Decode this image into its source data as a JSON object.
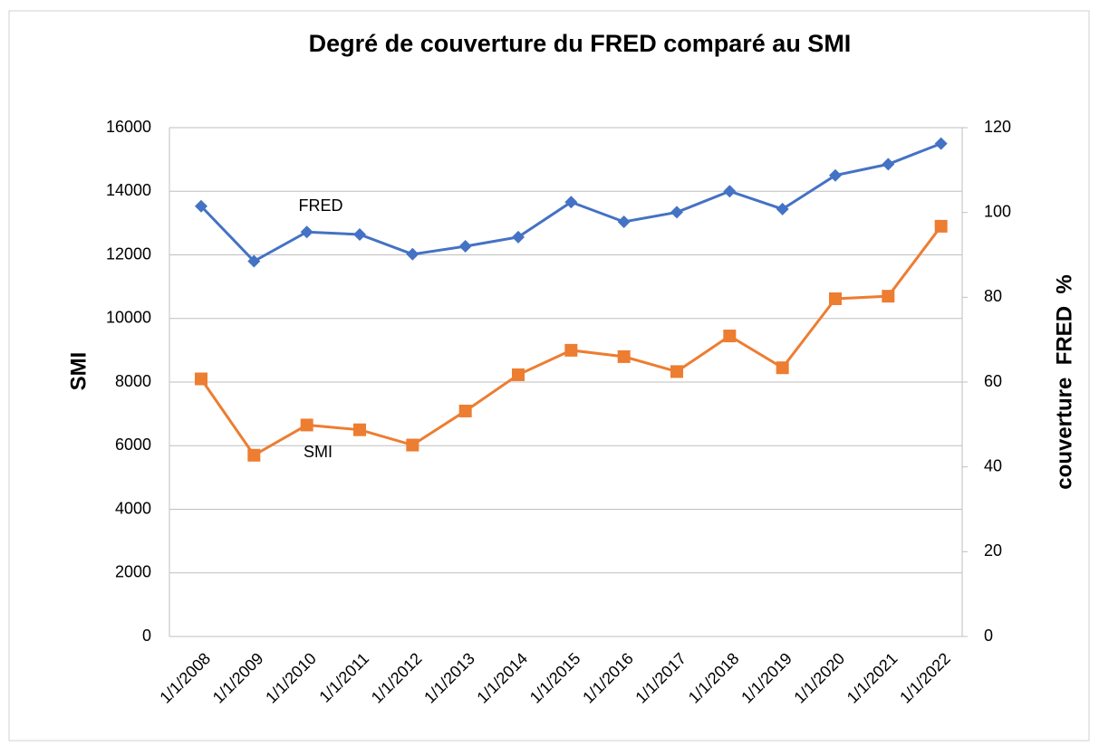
{
  "chart_data": {
    "type": "line",
    "title": "Degré de couverture du FRED  comparé au SMI",
    "ylabel": "SMI",
    "y2label": "couverture  FRED  %",
    "categories": [
      "1/1/2008",
      "1/1/2009",
      "1/1/2010",
      "1/1/2011",
      "1/1/2012",
      "1/1/2013",
      "1/1/2014",
      "1/1/2015",
      "1/1/2016",
      "1/1/2017",
      "1/1/2018",
      "1/1/2019",
      "1/1/2020",
      "1/1/2021",
      "1/1/2022"
    ],
    "series": [
      {
        "name": "FRED",
        "color": "#4472c4",
        "marker": "diamond",
        "values": [
          13530,
          11800,
          12720,
          12640,
          12020,
          12270,
          12560,
          13660,
          13040,
          13340,
          14000,
          13440,
          14500,
          14850,
          15500
        ]
      },
      {
        "name": "SMI",
        "color": "#ed7d31",
        "marker": "square",
        "values": [
          8100,
          5700,
          6650,
          6500,
          6020,
          7090,
          8230,
          9000,
          8800,
          8330,
          9450,
          8450,
          10620,
          10700,
          12900
        ]
      }
    ],
    "ylim": [
      0,
      16000
    ],
    "yticks": [
      0,
      2000,
      4000,
      6000,
      8000,
      10000,
      12000,
      14000,
      16000
    ],
    "y2lim": [
      0,
      120
    ],
    "y2ticks": [
      0,
      20,
      40,
      60,
      80,
      100,
      120
    ],
    "grid": true
  }
}
